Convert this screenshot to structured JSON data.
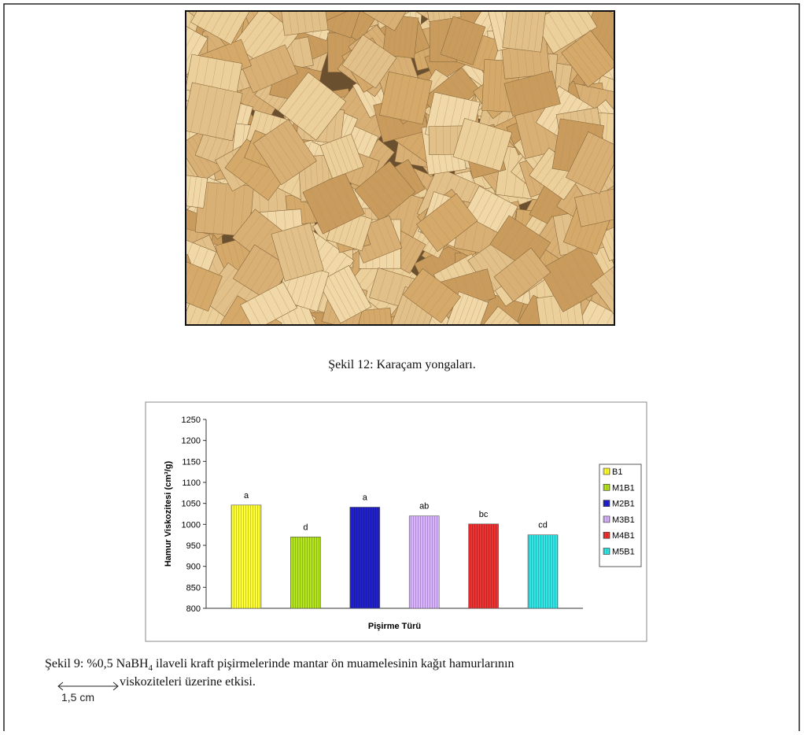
{
  "figure_12": {
    "caption": "Şekil 12: Karaçam yongaları."
  },
  "chart_data": {
    "type": "bar",
    "y_label": "Hamur Viskozitesi (cm³/g)",
    "x_label": "Pişirme Türü",
    "categories": [
      null
    ],
    "series": [
      {
        "name": "B1",
        "color": "#ffff33",
        "values": [
          1046
        ],
        "labels": [
          "a"
        ]
      },
      {
        "name": "M1B1",
        "color": "#b5e61d",
        "values": [
          970
        ],
        "labels": [
          "d"
        ]
      },
      {
        "name": "M2B1",
        "color": "#2222cc",
        "values": [
          1041
        ],
        "labels": [
          "a"
        ]
      },
      {
        "name": "M3B1",
        "color": "#d9b3ff",
        "values": [
          1020
        ],
        "labels": [
          "ab"
        ]
      },
      {
        "name": "M4B1",
        "color": "#ee3333",
        "values": [
          1001
        ],
        "labels": [
          "bc"
        ]
      },
      {
        "name": "M5B1",
        "color": "#33e6e6",
        "values": [
          975
        ],
        "labels": [
          "cd"
        ]
      }
    ],
    "ylim": [
      800,
      1250
    ],
    "yticks": [
      800,
      850,
      900,
      950,
      1000,
      1050,
      1100,
      1150,
      1200,
      1250
    ],
    "legend": "right"
  },
  "figure_9": {
    "caption_parts": [
      "Şekil 9: %0,5 NaBH",
      "4",
      " ilaveli kraft pişirmelerinde mantar ön muamelesinin kağıt hamurlarının",
      "viskoziteleri üzerine etkisi."
    ]
  },
  "scale_bar": {
    "label": "1,5 cm"
  }
}
